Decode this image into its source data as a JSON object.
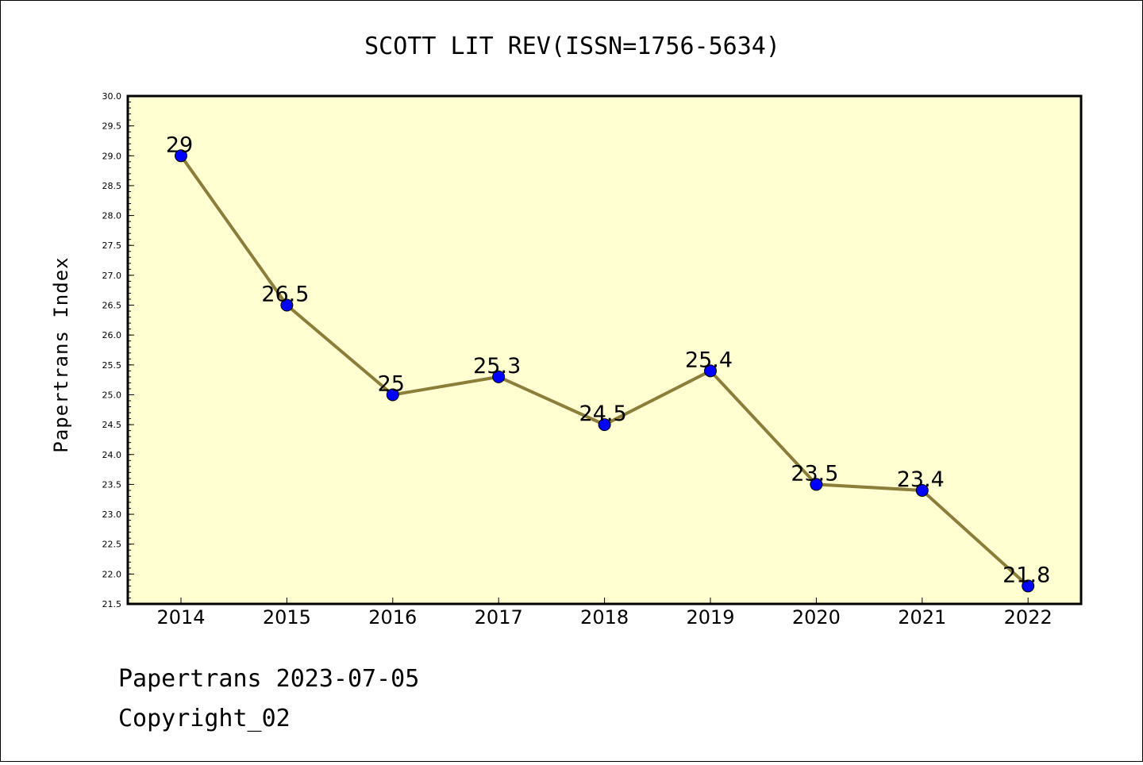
{
  "footer": {
    "line1": "Papertrans 2023-07-05",
    "line2": "Copyright_02"
  },
  "colors": {
    "plot_background": "#ffffd2",
    "line": "#8b7d3a",
    "marker": "#0000ff"
  },
  "chart_data": {
    "type": "line",
    "title": "SCOTT LIT REV(ISSN=1756-5634)",
    "xlabel": "",
    "ylabel": "Papertrans Index",
    "categories": [
      "2014",
      "2015",
      "2016",
      "2017",
      "2018",
      "2019",
      "2020",
      "2021",
      "2022"
    ],
    "series": [
      {
        "values": [
          29,
          26.5,
          25,
          25.3,
          24.5,
          25.4,
          23.5,
          23.4,
          21.8
        ],
        "labels": [
          "29",
          "26.5",
          "25",
          "25.3",
          "24.5",
          "25.4",
          "23.5",
          "23.4",
          "21.8"
        ]
      }
    ],
    "ylim": [
      21.5,
      30.0
    ],
    "yticks": [
      "21.5",
      "22.0",
      "22.5",
      "23.0",
      "23.5",
      "24.0",
      "24.5",
      "25.0",
      "25.5",
      "26.0",
      "26.5",
      "27.0",
      "27.5",
      "28.0",
      "28.5",
      "29.0",
      "29.5",
      "30.0"
    ],
    "grid": false,
    "legend": "none"
  }
}
